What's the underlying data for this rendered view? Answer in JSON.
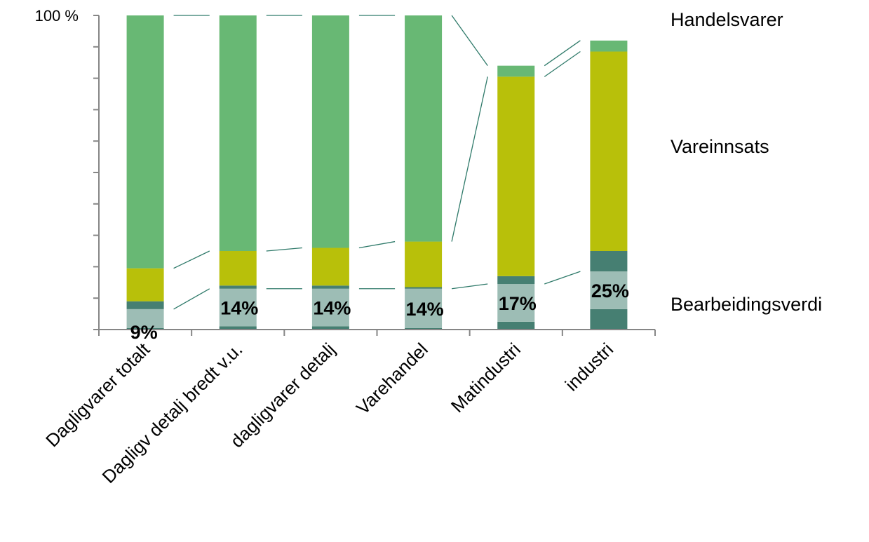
{
  "chart_data": {
    "type": "bar",
    "stacked": true,
    "percent_stacked": true,
    "categories": [
      "Dagligvarer totalt",
      "Dagligv detalj bredt v.u.",
      "dagligvarer detalj",
      "Varehandel",
      "Matindustri",
      "industri"
    ],
    "series": [
      {
        "name": "",
        "values": [
          0.5,
          1,
          1,
          0.5,
          2.5,
          6.5
        ],
        "color": "#467f72"
      },
      {
        "name": "",
        "values": [
          6,
          12,
          12,
          12.5,
          12,
          12
        ],
        "color": "#9dbdb5"
      },
      {
        "name": "",
        "values": [
          2.5,
          1,
          1,
          0.5,
          2.5,
          6.5
        ],
        "color": "#467f72"
      },
      {
        "name": "",
        "values": [
          10.5,
          11,
          12,
          14.5,
          63.5,
          63.5
        ],
        "color": "#b8c00a"
      },
      {
        "name": "",
        "values": [
          80.5,
          75,
          74,
          72,
          3.5,
          3.5
        ],
        "color": "#68b874"
      }
    ],
    "group_labels": [
      "Handelsvarer",
      "Vareinnsats",
      "Bearbeidingsverdi"
    ],
    "data_labels": [
      "9%",
      "14%",
      "14%",
      "14%",
      "17%",
      "25%"
    ],
    "y_tick_label": "100 %",
    "ylim": [
      0,
      100
    ],
    "grid": false
  }
}
